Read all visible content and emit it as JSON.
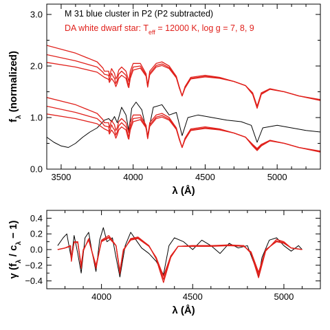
{
  "chart_data": [
    {
      "type": "line",
      "panel": "top",
      "title_lines": [
        {
          "text": "M 31 blue cluster in P2 (P2 subtracted)",
          "color": "#000000"
        },
        {
          "pre": "DA white dwarf star: T",
          "sub": "eff",
          "post": " = 12000 K, log g = 7, 8, 9",
          "color": "#e0201b"
        }
      ],
      "xlabel": "λ (Å)",
      "ylabel": "f",
      "ylabel_sub": "λ",
      "ylabel_post": " (normalized)",
      "xlim": [
        3400,
        5300
      ],
      "ylim": [
        0.0,
        3.2
      ],
      "xticks": [
        3500,
        4000,
        4500,
        5000
      ],
      "yticks": [
        0.0,
        1.0,
        2.0,
        3.0
      ],
      "ytick_labels": [
        "0.0",
        "1.0",
        "2.0",
        "3.0"
      ],
      "grid": false,
      "series": [
        {
          "role": "observed",
          "color": "#000000",
          "x": [
            3400,
            3450,
            3500,
            3550,
            3600,
            3650,
            3700,
            3750,
            3800,
            3830,
            3850,
            3870,
            3890,
            3920,
            3950,
            3970,
            3990,
            4020,
            4060,
            4100,
            4140,
            4200,
            4250,
            4300,
            4340,
            4380,
            4450,
            4550,
            4650,
            4750,
            4820,
            4861,
            4900,
            5000,
            5100,
            5200,
            5300
          ],
          "y": [
            0.62,
            0.52,
            0.45,
            0.42,
            0.5,
            0.62,
            0.72,
            0.8,
            0.95,
            0.98,
            0.92,
            1.02,
            0.9,
            1.2,
            1.05,
            0.75,
            1.18,
            1.3,
            1.15,
            0.65,
            1.2,
            1.25,
            1.05,
            1.1,
            0.65,
            1.0,
            1.05,
            1.0,
            0.95,
            0.92,
            0.85,
            0.52,
            0.8,
            0.85,
            0.8,
            0.75,
            0.72
          ]
        },
        {
          "role": "model",
          "name": "log g = 7",
          "color": "#e0201b",
          "x": [
            3400,
            3600,
            3750,
            3790,
            3800,
            3830,
            3835,
            3850,
            3860,
            3870,
            3880,
            3889,
            3900,
            3920,
            3950,
            3965,
            3970,
            3980,
            4000,
            4050,
            4090,
            4101,
            4115,
            4160,
            4200,
            4250,
            4300,
            4320,
            4340,
            4360,
            4400,
            4500,
            4600,
            4700,
            4780,
            4830,
            4861,
            4890,
            4950,
            5050,
            5150,
            5300
          ],
          "y": [
            2.4,
            2.25,
            2.08,
            1.96,
            1.9,
            1.9,
            1.8,
            1.95,
            1.9,
            1.86,
            1.75,
            1.8,
            1.92,
            1.98,
            1.9,
            1.75,
            1.7,
            1.9,
            2.05,
            2.05,
            1.85,
            1.62,
            1.9,
            2.05,
            2.08,
            2.0,
            1.8,
            1.6,
            1.42,
            1.6,
            1.78,
            1.82,
            1.78,
            1.7,
            1.62,
            1.45,
            1.18,
            1.45,
            1.55,
            1.5,
            1.42,
            1.33
          ]
        },
        {
          "role": "model",
          "name": "log g = 8",
          "color": "#e0201b",
          "x": [
            3400,
            3600,
            3750,
            3790,
            3800,
            3830,
            3835,
            3850,
            3860,
            3870,
            3880,
            3889,
            3900,
            3920,
            3950,
            3965,
            3970,
            3980,
            4000,
            4050,
            4090,
            4101,
            4115,
            4160,
            4200,
            4250,
            4300,
            4320,
            4340,
            4360,
            4400,
            4500,
            4600,
            4700,
            4780,
            4830,
            4861,
            4890,
            4950,
            5050,
            5150,
            5300
          ],
          "y": [
            2.22,
            2.1,
            1.98,
            1.88,
            1.84,
            1.82,
            1.72,
            1.86,
            1.8,
            1.76,
            1.66,
            1.72,
            1.84,
            1.9,
            1.82,
            1.66,
            1.62,
            1.82,
            1.98,
            2.0,
            1.82,
            1.6,
            1.86,
            2.01,
            2.04,
            1.97,
            1.78,
            1.58,
            1.42,
            1.58,
            1.76,
            1.8,
            1.77,
            1.7,
            1.62,
            1.46,
            1.2,
            1.46,
            1.55,
            1.5,
            1.42,
            1.34
          ]
        },
        {
          "role": "model",
          "name": "log g = 9",
          "color": "#e0201b",
          "x": [
            3400,
            3600,
            3750,
            3790,
            3800,
            3830,
            3835,
            3850,
            3860,
            3870,
            3880,
            3889,
            3900,
            3920,
            3950,
            3965,
            3970,
            3980,
            4000,
            4050,
            4090,
            4101,
            4115,
            4160,
            4200,
            4250,
            4300,
            4320,
            4340,
            4360,
            4400,
            4500,
            4600,
            4700,
            4780,
            4830,
            4861,
            4890,
            4950,
            5050,
            5150,
            5300
          ],
          "y": [
            2.07,
            1.98,
            1.88,
            1.8,
            1.78,
            1.74,
            1.68,
            1.76,
            1.72,
            1.68,
            1.6,
            1.66,
            1.76,
            1.82,
            1.76,
            1.6,
            1.58,
            1.76,
            1.92,
            1.96,
            1.8,
            1.59,
            1.83,
            1.98,
            2.01,
            1.95,
            1.77,
            1.58,
            1.42,
            1.57,
            1.75,
            1.79,
            1.76,
            1.7,
            1.62,
            1.48,
            1.22,
            1.48,
            1.56,
            1.5,
            1.42,
            1.35
          ]
        },
        {
          "role": "model",
          "name": "log g = 7",
          "color": "#e0201b",
          "x": [
            3400,
            3600,
            3750,
            3790,
            3800,
            3830,
            3835,
            3850,
            3860,
            3870,
            3880,
            3889,
            3900,
            3920,
            3950,
            3965,
            3970,
            3980,
            4000,
            4050,
            4090,
            4101,
            4115,
            4160,
            4200,
            4250,
            4300,
            4320,
            4340,
            4360,
            4400,
            4500,
            4600,
            4700,
            4780,
            4830,
            4861,
            4890,
            4950,
            5050,
            5150,
            5300
          ],
          "y": [
            1.39,
            1.25,
            1.08,
            0.96,
            0.9,
            0.9,
            0.8,
            0.95,
            0.9,
            0.86,
            0.75,
            0.8,
            0.92,
            0.98,
            0.9,
            0.75,
            0.7,
            0.9,
            1.05,
            1.05,
            0.85,
            0.62,
            0.9,
            1.05,
            1.08,
            1.0,
            0.8,
            0.6,
            0.42,
            0.6,
            0.78,
            0.82,
            0.78,
            0.7,
            0.62,
            0.45,
            0.36,
            0.45,
            0.55,
            0.5,
            0.42,
            0.33
          ]
        },
        {
          "role": "model",
          "name": "log g = 8",
          "color": "#e0201b",
          "x": [
            3400,
            3600,
            3750,
            3790,
            3800,
            3830,
            3835,
            3850,
            3860,
            3870,
            3880,
            3889,
            3900,
            3920,
            3950,
            3965,
            3970,
            3980,
            4000,
            4050,
            4090,
            4101,
            4115,
            4160,
            4200,
            4250,
            4300,
            4320,
            4340,
            4360,
            4400,
            4500,
            4600,
            4700,
            4780,
            4830,
            4861,
            4890,
            4950,
            5050,
            5150,
            5300
          ],
          "y": [
            1.22,
            1.1,
            0.98,
            0.88,
            0.84,
            0.82,
            0.72,
            0.86,
            0.8,
            0.76,
            0.66,
            0.72,
            0.84,
            0.9,
            0.82,
            0.66,
            0.62,
            0.82,
            0.98,
            1.0,
            0.82,
            0.6,
            0.86,
            1.01,
            1.04,
            0.97,
            0.78,
            0.58,
            0.42,
            0.58,
            0.76,
            0.8,
            0.77,
            0.7,
            0.62,
            0.46,
            0.38,
            0.46,
            0.55,
            0.5,
            0.42,
            0.34
          ]
        },
        {
          "role": "model",
          "name": "log g = 9",
          "color": "#e0201b",
          "x": [
            3400,
            3600,
            3750,
            3790,
            3800,
            3830,
            3835,
            3850,
            3860,
            3870,
            3880,
            3889,
            3900,
            3920,
            3950,
            3965,
            3970,
            3980,
            4000,
            4050,
            4090,
            4101,
            4115,
            4160,
            4200,
            4250,
            4300,
            4320,
            4340,
            4360,
            4400,
            4500,
            4600,
            4700,
            4780,
            4830,
            4861,
            4890,
            4950,
            5050,
            5150,
            5300
          ],
          "y": [
            1.07,
            0.98,
            0.88,
            0.8,
            0.78,
            0.74,
            0.68,
            0.76,
            0.72,
            0.68,
            0.6,
            0.66,
            0.76,
            0.82,
            0.76,
            0.6,
            0.58,
            0.76,
            0.92,
            0.96,
            0.8,
            0.59,
            0.83,
            0.98,
            1.01,
            0.95,
            0.77,
            0.58,
            0.42,
            0.57,
            0.75,
            0.79,
            0.76,
            0.7,
            0.62,
            0.48,
            0.4,
            0.48,
            0.56,
            0.5,
            0.42,
            0.35
          ]
        }
      ]
    },
    {
      "type": "line",
      "panel": "bottom",
      "xlabel": "λ (Å)",
      "ylabel": "γ (f",
      "ylabel_sub1": "λ",
      "ylabel_mid": " / c",
      "ylabel_sub2": "λ",
      "ylabel_post": " − 1)",
      "xlim": [
        3700,
        5200
      ],
      "ylim": [
        -0.5,
        0.5
      ],
      "xticks": [
        4000,
        4500,
        5000
      ],
      "yticks": [
        -0.4,
        -0.2,
        0.0,
        0.2,
        0.4
      ],
      "ytick_labels": [
        "−0.4",
        "−0.2",
        "0.0",
        "0.2",
        "0.4"
      ],
      "grid": false,
      "series": [
        {
          "role": "observed",
          "color": "#000000",
          "x": [
            3760,
            3790,
            3810,
            3835,
            3850,
            3870,
            3889,
            3910,
            3930,
            3950,
            3970,
            3990,
            4010,
            4030,
            4060,
            4080,
            4101,
            4130,
            4160,
            4190,
            4220,
            4260,
            4300,
            4340,
            4370,
            4400,
            4450,
            4500,
            4550,
            4600,
            4650,
            4700,
            4750,
            4800,
            4840,
            4861,
            4880,
            4920,
            4960,
            5000,
            5040,
            5080,
            5100
          ],
          "y": [
            0.05,
            0.15,
            0.2,
            -0.12,
            0.18,
            -0.05,
            -0.3,
            0.15,
            0.22,
            -0.05,
            -0.28,
            0.12,
            0.28,
            0.1,
            0.15,
            -0.1,
            -0.35,
            0.05,
            0.22,
            0.12,
            0.02,
            -0.05,
            -0.15,
            -0.32,
            0.05,
            0.15,
            0.1,
            0.0,
            0.12,
            0.05,
            -0.05,
            0.08,
            0.02,
            0.05,
            -0.2,
            -0.35,
            -0.1,
            0.12,
            0.15,
            0.05,
            -0.02,
            0.05,
            0.0
          ]
        },
        {
          "role": "model",
          "name": "log g = 7",
          "color": "#e0201b",
          "x": [
            3760,
            3800,
            3830,
            3835,
            3850,
            3870,
            3889,
            3900,
            3930,
            3970,
            4000,
            4040,
            4080,
            4101,
            4120,
            4160,
            4200,
            4260,
            4300,
            4340,
            4380,
            4420,
            4500,
            4600,
            4700,
            4780,
            4820,
            4861,
            4900,
            4960,
            5000,
            5040,
            5100
          ],
          "y": [
            0.0,
            0.02,
            0.05,
            -0.15,
            0.1,
            0.1,
            -0.24,
            -0.02,
            0.14,
            -0.24,
            0.12,
            0.18,
            0.05,
            -0.31,
            -0.02,
            0.14,
            0.16,
            0.05,
            -0.12,
            -0.42,
            -0.1,
            0.04,
            0.05,
            0.05,
            0.06,
            0.05,
            -0.05,
            -0.36,
            -0.02,
            0.13,
            0.1,
            0.02,
            0.0
          ]
        },
        {
          "role": "model",
          "name": "log g = 8",
          "color": "#e0201b",
          "x": [
            3760,
            3800,
            3830,
            3835,
            3850,
            3870,
            3889,
            3900,
            3930,
            3970,
            4000,
            4040,
            4080,
            4101,
            4120,
            4160,
            4200,
            4260,
            4300,
            4340,
            4380,
            4420,
            4500,
            4600,
            4700,
            4780,
            4820,
            4861,
            4900,
            4960,
            5000,
            5040,
            5100
          ],
          "y": [
            0.0,
            0.02,
            0.05,
            -0.13,
            0.1,
            0.1,
            -0.22,
            -0.01,
            0.13,
            -0.22,
            0.11,
            0.16,
            0.05,
            -0.29,
            -0.01,
            0.13,
            0.15,
            0.05,
            -0.11,
            -0.38,
            -0.09,
            0.04,
            0.05,
            0.05,
            0.05,
            0.05,
            -0.04,
            -0.32,
            -0.01,
            0.11,
            0.09,
            0.02,
            0.0
          ]
        },
        {
          "role": "model",
          "name": "log g = 9",
          "color": "#e0201b",
          "x": [
            3760,
            3800,
            3830,
            3835,
            3850,
            3870,
            3889,
            3900,
            3930,
            3970,
            4000,
            4040,
            4080,
            4101,
            4120,
            4160,
            4200,
            4260,
            4300,
            4340,
            4380,
            4420,
            4500,
            4600,
            4700,
            4780,
            4820,
            4861,
            4900,
            4960,
            5000,
            5040,
            5100
          ],
          "y": [
            0.0,
            0.02,
            0.04,
            -0.11,
            0.09,
            0.09,
            -0.2,
            0.0,
            0.12,
            -0.2,
            0.1,
            0.15,
            0.05,
            -0.27,
            0.0,
            0.12,
            0.14,
            0.04,
            -0.1,
            -0.34,
            -0.08,
            0.04,
            0.04,
            0.04,
            0.05,
            0.04,
            -0.03,
            -0.29,
            0.0,
            0.1,
            0.08,
            0.02,
            0.0
          ]
        }
      ]
    }
  ]
}
